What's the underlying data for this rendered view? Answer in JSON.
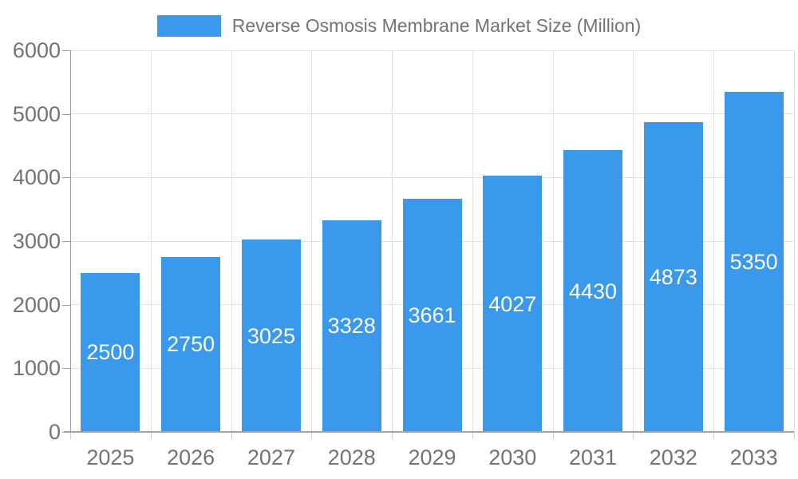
{
  "chart_data": {
    "type": "bar",
    "title": "Reverse Osmosis Membrane Market Size (Million)",
    "legend": {
      "label": "Reverse Osmosis Membrane Market Size (Million)",
      "position": "top"
    },
    "categories": [
      "2025",
      "2026",
      "2027",
      "2028",
      "2029",
      "2030",
      "2031",
      "2032",
      "2033"
    ],
    "values": [
      2500,
      2750,
      3025,
      3328,
      3661,
      4027,
      4430,
      4873,
      5350
    ],
    "xlabel": "",
    "ylabel": "",
    "ylim": [
      0,
      6000
    ],
    "ytick_step": 1000,
    "ytick_labels": [
      "0",
      "1000",
      "2000",
      "3000",
      "4000",
      "5000",
      "6000"
    ],
    "grid": true,
    "value_labels_shown": true,
    "colors": {
      "bar": "#3B99EC",
      "value_label": "#FFFFFF",
      "axis_text": "#737373",
      "gridline": "#E3E3E3",
      "axis_line": "#9E9E9E",
      "baseline": "#A3A3A3",
      "tick_below_axis": "#CFCFCF",
      "background": "#FFFFFF"
    }
  }
}
